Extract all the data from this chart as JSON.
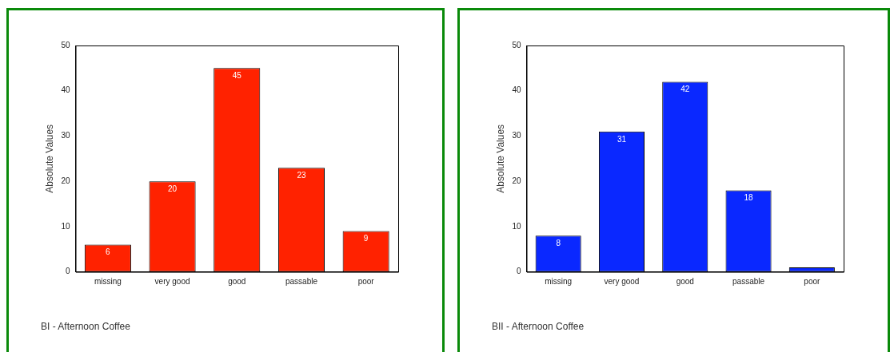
{
  "chart_data": [
    {
      "type": "bar",
      "title": "BI - Afternoon Coffee",
      "ylabel": "Absolute Values",
      "categories": [
        "missing",
        "very good",
        "good",
        "passable",
        "poor"
      ],
      "values": [
        6,
        20,
        45,
        23,
        9
      ],
      "color": "#ff2200",
      "ylim": [
        0,
        50
      ],
      "yticks": [
        0,
        10,
        20,
        30,
        40,
        50
      ],
      "grid": false,
      "legend": false,
      "data_labels": true
    },
    {
      "type": "bar",
      "title": "BII - Afternoon Coffee",
      "ylabel": "Absolute Values",
      "categories": [
        "missing",
        "very good",
        "good",
        "passable",
        "poor"
      ],
      "values": [
        8,
        31,
        42,
        18,
        1
      ],
      "color": "#0a28ff",
      "value_labels": [
        "8",
        "31",
        "42",
        "18",
        null
      ],
      "ylim": [
        0,
        50
      ],
      "yticks": [
        0,
        10,
        20,
        30,
        40,
        50
      ],
      "grid": false,
      "legend": false
    }
  ]
}
